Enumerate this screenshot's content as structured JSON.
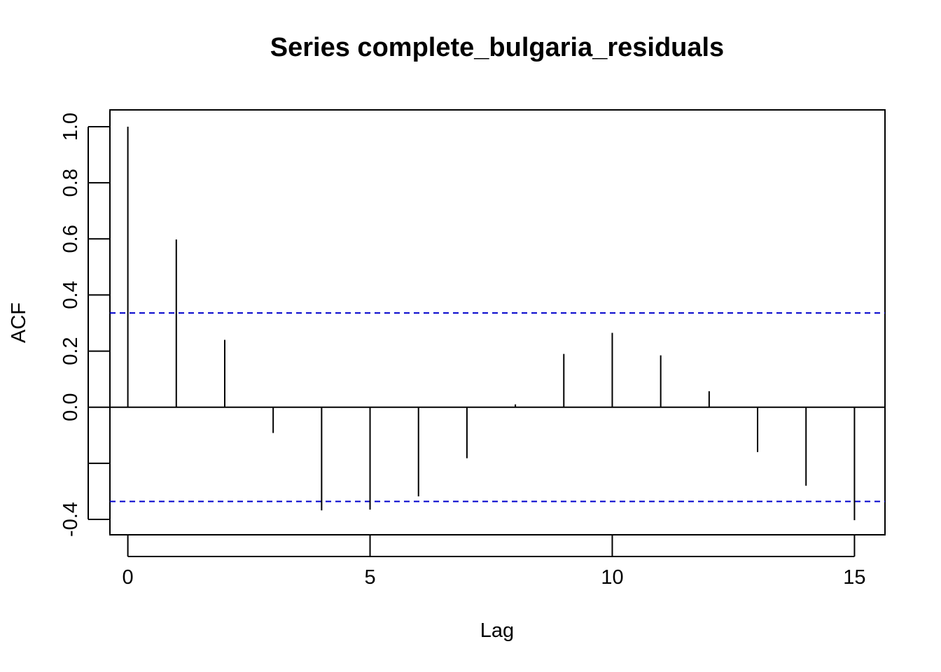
{
  "chart_data": {
    "type": "bar",
    "title": "Series  complete_bulgaria_residuals",
    "xlabel": "Lag",
    "ylabel": "ACF",
    "xlim": [
      -0.37,
      15.63
    ],
    "ylim": [
      -0.455,
      1.06
    ],
    "x_ticks": [
      0,
      5,
      10,
      15
    ],
    "y_ticks": [
      -0.4,
      0.0,
      0.2,
      0.4,
      0.6,
      0.8,
      1.0
    ],
    "y_tick_marks": [
      -0.4,
      -0.2,
      0.0,
      0.2,
      0.4,
      0.6,
      0.8,
      1.0
    ],
    "y_tick_labels": [
      "-0.4",
      "0.0",
      "0.2",
      "0.4",
      "0.6",
      "0.8",
      "1.0"
    ],
    "x_tick_labels": [
      "0",
      "5",
      "10",
      "15"
    ],
    "lags": [
      0,
      1,
      2,
      3,
      4,
      5,
      6,
      7,
      8,
      9,
      10,
      11,
      12,
      13,
      14,
      15
    ],
    "values": [
      1.0,
      0.598,
      0.24,
      -0.092,
      -0.368,
      -0.365,
      -0.318,
      -0.182,
      0.01,
      0.19,
      0.265,
      0.185,
      0.057,
      -0.16,
      -0.28,
      -0.403
    ],
    "confidence_bound": 0.336,
    "confidence_color": "#0000CC",
    "bar_color": "#000000",
    "zero_line": true,
    "grid": false,
    "legend": "none"
  }
}
